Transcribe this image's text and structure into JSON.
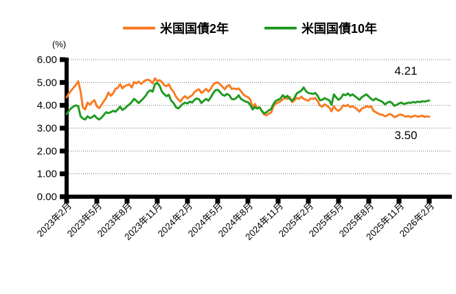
{
  "chart_data": {
    "type": "line",
    "title": "",
    "y_unit": "(%)",
    "ylim": [
      0,
      6
    ],
    "ytick_step": 1.0,
    "ytick_labels": [
      "0.00",
      "1.00",
      "2.00",
      "3.00",
      "4.00",
      "5.00",
      "6.00"
    ],
    "xtick_labels": [
      "2023年2月",
      "2023年5月",
      "2023年8月",
      "2023年11月",
      "2024年2月",
      "2024年5月",
      "2024年8月",
      "2024年11月",
      "2025年2月",
      "2025年5月",
      "2025年8月",
      "2025年11月",
      "2026年2月"
    ],
    "x_start": "2023年2月",
    "x_end": "2026年2月",
    "months_per_tick": 3,
    "x_range_months": 36,
    "data_end_month": 36,
    "grid": "horizontal dotted",
    "legend_position": "top",
    "axis_color": "#000000",
    "gridline_color": "#6b6b6b",
    "series": [
      {
        "name": "米国国債2年",
        "color": "#F97B22",
        "end_value_label": "3.50",
        "values": [
          4.35,
          4.52,
          4.65,
          4.78,
          4.89,
          5.05,
          4.62,
          3.9,
          3.82,
          4.12,
          4.02,
          4.15,
          4.22,
          3.95,
          3.88,
          4.02,
          4.18,
          4.32,
          4.56,
          4.42,
          4.52,
          4.72,
          4.76,
          4.92,
          4.74,
          4.84,
          4.88,
          4.92,
          4.78,
          5.02,
          4.96,
          5.04,
          4.94,
          5.02,
          5.1,
          5.12,
          5.08,
          4.96,
          5.18,
          5.06,
          5.1,
          5.02,
          4.88,
          4.84,
          4.92,
          4.72,
          4.6,
          4.38,
          4.26,
          4.16,
          4.32,
          4.4,
          4.3,
          4.38,
          4.44,
          4.58,
          4.66,
          4.7,
          4.54,
          4.62,
          4.72,
          4.6,
          4.72,
          4.9,
          4.98,
          5.0,
          4.92,
          4.82,
          4.7,
          4.84,
          4.88,
          4.72,
          4.74,
          4.7,
          4.74,
          4.62,
          4.48,
          4.4,
          4.36,
          4.26,
          3.9,
          4.06,
          3.88,
          3.92,
          3.74,
          3.6,
          3.56,
          3.64,
          3.68,
          3.96,
          4.08,
          4.12,
          4.18,
          4.26,
          4.32,
          4.28,
          4.36,
          4.14,
          4.22,
          4.32,
          4.28,
          4.38,
          4.28,
          4.24,
          4.2,
          4.3,
          4.28,
          4.32,
          4.18,
          3.99,
          3.94,
          4.04,
          3.98,
          3.9,
          3.74,
          3.96,
          3.82,
          3.76,
          3.84,
          4.0,
          3.96,
          4.02,
          3.92,
          3.96,
          3.9,
          3.82,
          3.72,
          3.86,
          3.9,
          3.96,
          3.92,
          3.96,
          3.76,
          3.7,
          3.64,
          3.6,
          3.58,
          3.52,
          3.56,
          3.62,
          3.58,
          3.48,
          3.52,
          3.58,
          3.6,
          3.54,
          3.5,
          3.54,
          3.48,
          3.52,
          3.55,
          3.5,
          3.52,
          3.55,
          3.49,
          3.52,
          3.5
        ]
      },
      {
        "name": "米国国債10年",
        "color": "#1F9A21",
        "end_value_label": "4.21",
        "values": [
          3.62,
          3.76,
          3.88,
          3.95,
          4.0,
          3.96,
          3.52,
          3.42,
          3.38,
          3.52,
          3.44,
          3.48,
          3.56,
          3.44,
          3.38,
          3.46,
          3.58,
          3.7,
          3.66,
          3.7,
          3.76,
          3.72,
          3.82,
          3.94,
          3.8,
          3.86,
          3.96,
          4.04,
          4.14,
          4.28,
          4.2,
          4.1,
          4.2,
          4.3,
          4.42,
          4.58,
          4.66,
          4.6,
          4.92,
          4.98,
          4.86,
          4.6,
          4.48,
          4.4,
          4.46,
          4.2,
          4.1,
          3.92,
          3.86,
          3.96,
          4.06,
          4.12,
          4.08,
          4.16,
          4.12,
          4.24,
          4.3,
          4.26,
          4.1,
          4.2,
          4.28,
          4.2,
          4.34,
          4.52,
          4.66,
          4.68,
          4.58,
          4.46,
          4.42,
          4.5,
          4.44,
          4.28,
          4.26,
          4.32,
          4.44,
          4.28,
          4.22,
          4.16,
          4.14,
          4.02,
          3.82,
          3.92,
          3.86,
          3.9,
          3.76,
          3.64,
          3.7,
          3.78,
          3.84,
          4.06,
          4.2,
          4.24,
          4.3,
          4.44,
          4.34,
          4.42,
          4.28,
          4.2,
          4.32,
          4.52,
          4.58,
          4.64,
          4.78,
          4.62,
          4.54,
          4.52,
          4.5,
          4.54,
          4.42,
          4.22,
          4.24,
          4.32,
          4.26,
          4.22,
          4.02,
          4.48,
          4.34,
          4.24,
          4.32,
          4.48,
          4.44,
          4.52,
          4.42,
          4.48,
          4.4,
          4.32,
          4.24,
          4.36,
          4.42,
          4.48,
          4.38,
          4.28,
          4.22,
          4.3,
          4.24,
          4.2,
          4.14,
          4.04,
          4.12,
          4.16,
          4.1,
          3.98,
          4.02,
          4.08,
          4.12,
          4.06,
          4.08,
          4.12,
          4.1,
          4.15,
          4.12,
          4.16,
          4.14,
          4.18,
          4.16,
          4.19,
          4.21
        ]
      }
    ]
  }
}
